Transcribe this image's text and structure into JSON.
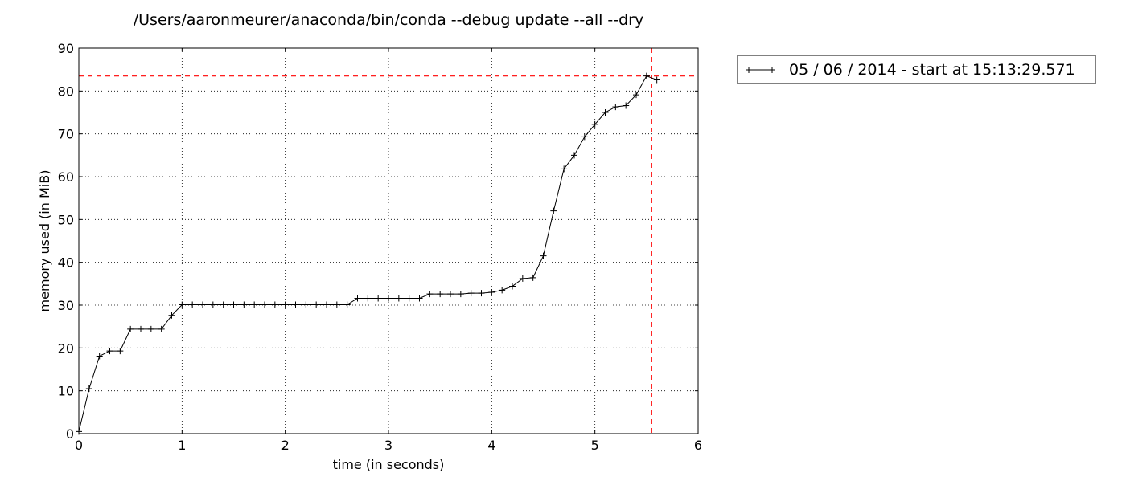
{
  "chart_data": {
    "type": "line",
    "title": "/Users/aaronmeurer/anaconda/bin/conda --debug update --all --dry",
    "xlabel": "time (in seconds)",
    "ylabel": "memory used (in MiB)",
    "xlim": [
      0,
      6
    ],
    "ylim": [
      0,
      90
    ],
    "xticks": [
      0,
      1,
      2,
      3,
      4,
      5,
      6
    ],
    "yticks": [
      0,
      10,
      20,
      30,
      40,
      50,
      60,
      70,
      80,
      90
    ],
    "grid": true,
    "grid_style": "dotted",
    "legend_position": "outside-top-right",
    "series": [
      {
        "name": "05 / 06 / 2014 - start at 15:13:29.571",
        "color": "#000000",
        "marker": "plus",
        "x": [
          0,
          0.1,
          0.2,
          0.3,
          0.4,
          0.5,
          0.6,
          0.7,
          0.8,
          0.9,
          1.0,
          1.1,
          1.2,
          1.3,
          1.4,
          1.5,
          1.6,
          1.7,
          1.8,
          1.9,
          2.0,
          2.1,
          2.2,
          2.3,
          2.4,
          2.5,
          2.6,
          2.7,
          2.8,
          2.9,
          3.0,
          3.1,
          3.2,
          3.3,
          3.4,
          3.5,
          3.6,
          3.7,
          3.8,
          3.9,
          4.0,
          4.1,
          4.2,
          4.3,
          4.4,
          4.5,
          4.6,
          4.7,
          4.8,
          4.9,
          5.0,
          5.1,
          5.2,
          5.3,
          5.4,
          5.5,
          5.6
        ],
        "y": [
          0.5,
          10.5,
          18.1,
          19.3,
          19.3,
          24.4,
          24.4,
          24.4,
          24.4,
          27.6,
          30.1,
          30.1,
          30.1,
          30.1,
          30.1,
          30.1,
          30.1,
          30.1,
          30.1,
          30.1,
          30.1,
          30.1,
          30.1,
          30.1,
          30.1,
          30.1,
          30.1,
          31.6,
          31.6,
          31.6,
          31.6,
          31.6,
          31.6,
          31.6,
          32.6,
          32.6,
          32.6,
          32.6,
          32.8,
          32.8,
          33.0,
          33.5,
          34.4,
          36.2,
          36.4,
          41.5,
          52.0,
          61.8,
          65.0,
          69.3,
          72.2,
          75.0,
          76.3,
          76.6,
          79.1,
          83.5,
          82.6
        ]
      }
    ],
    "reference_lines": [
      {
        "orientation": "horizontal",
        "value": 83.5,
        "color": "#ff0000",
        "style": "dashed"
      },
      {
        "orientation": "vertical",
        "value": 5.55,
        "color": "#ff0000",
        "style": "dashed"
      }
    ]
  }
}
